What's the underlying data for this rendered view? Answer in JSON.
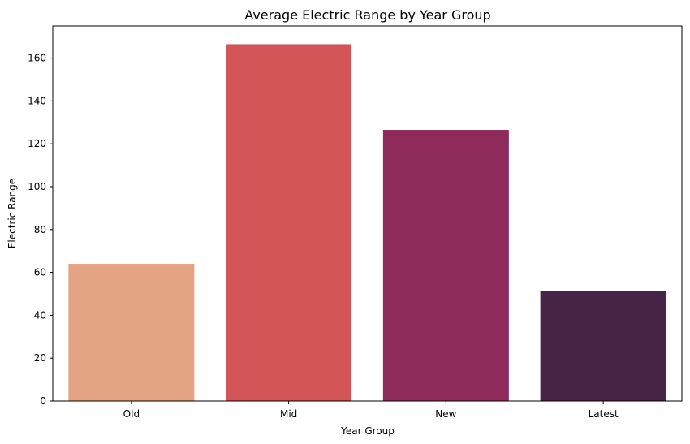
{
  "chart_data": {
    "type": "bar",
    "title": "Average Electric Range by Year Group",
    "xlabel": "Year Group",
    "ylabel": "Electric Range",
    "categories": [
      "Old",
      "Mid",
      "New",
      "Latest"
    ],
    "values": [
      64,
      166.5,
      126.5,
      51.5
    ],
    "colors": [
      "#e4a382",
      "#d35557",
      "#8f2b5a",
      "#472445"
    ],
    "ylim": [
      0,
      175
    ],
    "yticks": [
      0,
      20,
      40,
      60,
      80,
      100,
      120,
      140,
      160
    ],
    "grid": false,
    "legend": false
  }
}
